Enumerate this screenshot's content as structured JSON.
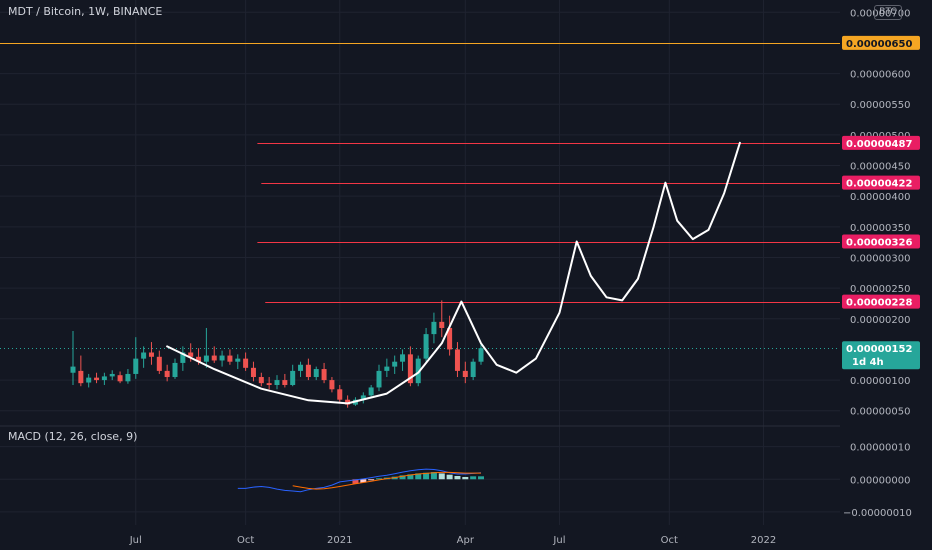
{
  "header": {
    "title": "MDT / Bitcoin, 1W, BINANCE",
    "currency": "BTC"
  },
  "colors": {
    "background": "#131722",
    "grid": "#1f2330",
    "up": "#26a69a",
    "down": "#ef5350",
    "level_line": "#f23645",
    "level_tag": "#e91e63",
    "orange_level": "#f5a623",
    "pattern": "#ffffff",
    "macd_line": "#2962ff",
    "signal_line": "#ff6d00",
    "last_price": "#26a69a"
  },
  "chart_data": {
    "type": "candlestick",
    "price_axis": {
      "ticks": [
        {
          "value": 5e-07,
          "label": "0.00000050"
        },
        {
          "value": 1e-06,
          "label": "0.00000100"
        },
        {
          "value": 2e-06,
          "label": "0.00000200"
        },
        {
          "value": 2.5e-06,
          "label": "0.00000250"
        },
        {
          "value": 3e-06,
          "label": "0.00000300"
        },
        {
          "value": 3.5e-06,
          "label": "0.00000350"
        },
        {
          "value": 4e-06,
          "label": "0.00000400"
        },
        {
          "value": 4.5e-06,
          "label": "0.00000450"
        },
        {
          "value": 5e-06,
          "label": "0.00000500"
        },
        {
          "value": 5.5e-06,
          "label": "0.00000550"
        },
        {
          "value": 6e-06,
          "label": "0.00000600"
        },
        {
          "value": 7e-06,
          "label": "0.00000700"
        }
      ],
      "range": [
        3e-07,
        7.2e-06
      ]
    },
    "time_axis": {
      "labels": [
        "Jul",
        "Oct",
        "2021",
        "Apr",
        "Jul",
        "Oct",
        "2022"
      ],
      "label_weeks": [
        4,
        18,
        30,
        46,
        58,
        72,
        84
      ]
    },
    "last_price": {
      "value": 1.52e-06,
      "label": "0.00000152",
      "countdown": "1d 4h"
    },
    "levels": [
      {
        "value": 6.5e-06,
        "label": "0.00000650",
        "kind": "orange",
        "from_week": -10
      },
      {
        "value": 4.87e-06,
        "label": "0.00000487",
        "kind": "red",
        "from_week": 19.5
      },
      {
        "value": 4.22e-06,
        "label": "0.00000422",
        "kind": "red",
        "from_week": 20
      },
      {
        "value": 3.26e-06,
        "label": "0.00000326",
        "kind": "red",
        "from_week": 19.5
      },
      {
        "value": 2.28e-06,
        "label": "0.00000228",
        "kind": "red",
        "from_week": 20.5
      }
    ],
    "candles": [
      {
        "w": -4,
        "o": 1.12,
        "h": 1.8,
        "l": 0.92,
        "c": 1.22
      },
      {
        "w": -3,
        "o": 1.15,
        "h": 1.4,
        "l": 0.9,
        "c": 0.95
      },
      {
        "w": -2,
        "o": 0.96,
        "h": 1.1,
        "l": 0.88,
        "c": 1.04
      },
      {
        "w": -1,
        "o": 1.04,
        "h": 1.12,
        "l": 0.95,
        "c": 1.0
      },
      {
        "w": 0,
        "o": 1.0,
        "h": 1.12,
        "l": 0.92,
        "c": 1.06
      },
      {
        "w": 1,
        "o": 1.06,
        "h": 1.16,
        "l": 1.0,
        "c": 1.1
      },
      {
        "w": 2,
        "o": 1.08,
        "h": 1.14,
        "l": 0.95,
        "c": 0.98
      },
      {
        "w": 3,
        "o": 0.98,
        "h": 1.18,
        "l": 0.94,
        "c": 1.1
      },
      {
        "w": 4,
        "o": 1.1,
        "h": 1.7,
        "l": 1.02,
        "c": 1.35
      },
      {
        "w": 5,
        "o": 1.35,
        "h": 1.55,
        "l": 1.2,
        "c": 1.45
      },
      {
        "w": 6,
        "o": 1.45,
        "h": 1.62,
        "l": 1.25,
        "c": 1.38
      },
      {
        "w": 7,
        "o": 1.38,
        "h": 1.48,
        "l": 1.1,
        "c": 1.15
      },
      {
        "w": 8,
        "o": 1.15,
        "h": 1.25,
        "l": 0.98,
        "c": 1.05
      },
      {
        "w": 9,
        "o": 1.05,
        "h": 1.35,
        "l": 1.02,
        "c": 1.28
      },
      {
        "w": 10,
        "o": 1.28,
        "h": 1.55,
        "l": 1.15,
        "c": 1.45
      },
      {
        "w": 11,
        "o": 1.45,
        "h": 1.6,
        "l": 1.3,
        "c": 1.38
      },
      {
        "w": 12,
        "o": 1.38,
        "h": 1.52,
        "l": 1.25,
        "c": 1.3
      },
      {
        "w": 13,
        "o": 1.3,
        "h": 1.85,
        "l": 1.2,
        "c": 1.4
      },
      {
        "w": 14,
        "o": 1.4,
        "h": 1.55,
        "l": 1.28,
        "c": 1.32
      },
      {
        "w": 15,
        "o": 1.32,
        "h": 1.48,
        "l": 1.22,
        "c": 1.4
      },
      {
        "w": 16,
        "o": 1.4,
        "h": 1.5,
        "l": 1.25,
        "c": 1.3
      },
      {
        "w": 17,
        "o": 1.3,
        "h": 1.42,
        "l": 1.18,
        "c": 1.35
      },
      {
        "w": 18,
        "o": 1.35,
        "h": 1.45,
        "l": 1.15,
        "c": 1.2
      },
      {
        "w": 19,
        "o": 1.2,
        "h": 1.3,
        "l": 0.98,
        "c": 1.05
      },
      {
        "w": 20,
        "o": 1.05,
        "h": 1.12,
        "l": 0.9,
        "c": 0.95
      },
      {
        "w": 21,
        "o": 0.95,
        "h": 1.05,
        "l": 0.85,
        "c": 0.92
      },
      {
        "w": 22,
        "o": 0.92,
        "h": 1.08,
        "l": 0.85,
        "c": 1.0
      },
      {
        "w": 23,
        "o": 1.0,
        "h": 1.1,
        "l": 0.88,
        "c": 0.92
      },
      {
        "w": 24,
        "o": 0.92,
        "h": 1.25,
        "l": 0.9,
        "c": 1.15
      },
      {
        "w": 25,
        "o": 1.15,
        "h": 1.3,
        "l": 1.05,
        "c": 1.25
      },
      {
        "w": 26,
        "o": 1.25,
        "h": 1.35,
        "l": 1.0,
        "c": 1.05
      },
      {
        "w": 27,
        "o": 1.05,
        "h": 1.22,
        "l": 1.0,
        "c": 1.18
      },
      {
        "w": 28,
        "o": 1.18,
        "h": 1.28,
        "l": 0.95,
        "c": 1.0
      },
      {
        "w": 29,
        "o": 1.0,
        "h": 1.05,
        "l": 0.8,
        "c": 0.85
      },
      {
        "w": 30,
        "o": 0.85,
        "h": 0.92,
        "l": 0.62,
        "c": 0.68
      },
      {
        "w": 31,
        "o": 0.68,
        "h": 0.75,
        "l": 0.55,
        "c": 0.6
      },
      {
        "w": 32,
        "o": 0.6,
        "h": 0.72,
        "l": 0.58,
        "c": 0.68
      },
      {
        "w": 33,
        "o": 0.68,
        "h": 0.8,
        "l": 0.62,
        "c": 0.75
      },
      {
        "w": 34,
        "o": 0.75,
        "h": 0.92,
        "l": 0.7,
        "c": 0.88
      },
      {
        "w": 35,
        "o": 0.88,
        "h": 1.25,
        "l": 0.82,
        "c": 1.15
      },
      {
        "w": 36,
        "o": 1.15,
        "h": 1.35,
        "l": 1.05,
        "c": 1.22
      },
      {
        "w": 37,
        "o": 1.22,
        "h": 1.4,
        "l": 1.1,
        "c": 1.3
      },
      {
        "w": 38,
        "o": 1.3,
        "h": 1.5,
        "l": 1.15,
        "c": 1.42
      },
      {
        "w": 39,
        "o": 1.42,
        "h": 1.55,
        "l": 0.9,
        "c": 0.95
      },
      {
        "w": 40,
        "o": 0.95,
        "h": 1.4,
        "l": 0.9,
        "c": 1.35
      },
      {
        "w": 41,
        "o": 1.35,
        "h": 1.85,
        "l": 1.3,
        "c": 1.75
      },
      {
        "w": 42,
        "o": 1.75,
        "h": 2.1,
        "l": 1.6,
        "c": 1.95
      },
      {
        "w": 43,
        "o": 1.95,
        "h": 2.3,
        "l": 1.7,
        "c": 1.85
      },
      {
        "w": 44,
        "o": 1.85,
        "h": 2.05,
        "l": 1.4,
        "c": 1.5
      },
      {
        "w": 45,
        "o": 1.5,
        "h": 1.62,
        "l": 1.05,
        "c": 1.15
      },
      {
        "w": 46,
        "o": 1.15,
        "h": 1.3,
        "l": 0.95,
        "c": 1.05
      },
      {
        "w": 47,
        "o": 1.05,
        "h": 1.35,
        "l": 1.0,
        "c": 1.3
      },
      {
        "w": 48,
        "o": 1.3,
        "h": 1.62,
        "l": 1.25,
        "c": 1.52
      }
    ],
    "candle_unit": 1e-06,
    "projection": [
      {
        "w": 8,
        "v": 1.55
      },
      {
        "w": 14,
        "v": 1.18
      },
      {
        "w": 20,
        "v": 0.86
      },
      {
        "w": 26,
        "v": 0.67
      },
      {
        "w": 31,
        "v": 0.62
      },
      {
        "w": 36,
        "v": 0.78
      },
      {
        "w": 40,
        "v": 1.12
      },
      {
        "w": 43,
        "v": 1.6
      },
      {
        "w": 45.5,
        "v": 2.28
      },
      {
        "w": 48,
        "v": 1.6
      },
      {
        "w": 50,
        "v": 1.25
      },
      {
        "w": 52.5,
        "v": 1.12
      },
      {
        "w": 55,
        "v": 1.35
      },
      {
        "w": 58,
        "v": 2.1
      },
      {
        "w": 60.2,
        "v": 3.26
      },
      {
        "w": 62,
        "v": 2.7
      },
      {
        "w": 64,
        "v": 2.35
      },
      {
        "w": 66,
        "v": 2.3
      },
      {
        "w": 68,
        "v": 2.65
      },
      {
        "w": 70,
        "v": 3.5
      },
      {
        "w": 71.5,
        "v": 4.22
      },
      {
        "w": 73,
        "v": 3.6
      },
      {
        "w": 75,
        "v": 3.3
      },
      {
        "w": 77,
        "v": 3.45
      },
      {
        "w": 79,
        "v": 4.05
      },
      {
        "w": 81,
        "v": 4.87
      }
    ],
    "macd": {
      "title": "MACD (12, 26, close, 9)",
      "ticks": [
        {
          "value": 1e-07,
          "label": "0.00000010"
        },
        {
          "value": 0.0,
          "label": "0.00000000"
        },
        {
          "value": -1e-07,
          "label": "−0.00000010"
        }
      ],
      "range": [
        -1.4e-07,
        1.6e-07
      ],
      "unit": 1e-07,
      "macd_line": [
        {
          "w": 17,
          "v": -0.28
        },
        {
          "w": 18,
          "v": -0.28
        },
        {
          "w": 19,
          "v": -0.24
        },
        {
          "w": 20,
          "v": -0.22
        },
        {
          "w": 21,
          "v": -0.25
        },
        {
          "w": 22,
          "v": -0.3
        },
        {
          "w": 23,
          "v": -0.34
        },
        {
          "w": 24,
          "v": -0.36
        },
        {
          "w": 25,
          "v": -0.38
        },
        {
          "w": 26,
          "v": -0.32
        },
        {
          "w": 27,
          "v": -0.28
        },
        {
          "w": 28,
          "v": -0.25
        },
        {
          "w": 29,
          "v": -0.18
        },
        {
          "w": 30,
          "v": -0.08
        },
        {
          "w": 31,
          "v": -0.05
        },
        {
          "w": 32,
          "v": -0.02
        },
        {
          "w": 33,
          "v": 0.01
        },
        {
          "w": 34,
          "v": 0.05
        },
        {
          "w": 35,
          "v": 0.09
        },
        {
          "w": 36,
          "v": 0.12
        },
        {
          "w": 37,
          "v": 0.17
        },
        {
          "w": 38,
          "v": 0.22
        },
        {
          "w": 39,
          "v": 0.26
        },
        {
          "w": 40,
          "v": 0.29
        },
        {
          "w": 41,
          "v": 0.31
        },
        {
          "w": 42,
          "v": 0.3
        },
        {
          "w": 43,
          "v": 0.26
        },
        {
          "w": 44,
          "v": 0.2
        },
        {
          "w": 45,
          "v": 0.16
        },
        {
          "w": 46,
          "v": 0.16
        },
        {
          "w": 47,
          "v": 0.18
        },
        {
          "w": 48,
          "v": 0.2
        }
      ],
      "signal_line": [
        {
          "w": 24,
          "v": -0.2
        },
        {
          "w": 25,
          "v": -0.24
        },
        {
          "w": 26,
          "v": -0.28
        },
        {
          "w": 27,
          "v": -0.3
        },
        {
          "w": 28,
          "v": -0.29
        },
        {
          "w": 29,
          "v": -0.26
        },
        {
          "w": 30,
          "v": -0.22
        },
        {
          "w": 31,
          "v": -0.18
        },
        {
          "w": 32,
          "v": -0.14
        },
        {
          "w": 33,
          "v": -0.1
        },
        {
          "w": 34,
          "v": -0.06
        },
        {
          "w": 35,
          "v": -0.02
        },
        {
          "w": 36,
          "v": 0.02
        },
        {
          "w": 37,
          "v": 0.05
        },
        {
          "w": 38,
          "v": 0.09
        },
        {
          "w": 39,
          "v": 0.13
        },
        {
          "w": 40,
          "v": 0.16
        },
        {
          "w": 41,
          "v": 0.18
        },
        {
          "w": 42,
          "v": 0.2
        },
        {
          "w": 43,
          "v": 0.21
        },
        {
          "w": 44,
          "v": 0.21
        },
        {
          "w": 45,
          "v": 0.2
        },
        {
          "w": 46,
          "v": 0.19
        },
        {
          "w": 47,
          "v": 0.19
        },
        {
          "w": 48,
          "v": 0.19
        }
      ],
      "histogram": [
        {
          "w": 32,
          "v": -0.14,
          "fill": "#ef5350"
        },
        {
          "w": 33,
          "v": -0.1,
          "fill": "#ffcdd2"
        },
        {
          "w": 34,
          "v": -0.03,
          "fill": "#ffcdd2"
        },
        {
          "w": 35,
          "v": 0.03,
          "fill": "#26a69a"
        },
        {
          "w": 36,
          "v": 0.05,
          "fill": "#26a69a"
        },
        {
          "w": 37,
          "v": 0.08,
          "fill": "#26a69a"
        },
        {
          "w": 38,
          "v": 0.12,
          "fill": "#26a69a"
        },
        {
          "w": 39,
          "v": 0.15,
          "fill": "#26a69a"
        },
        {
          "w": 40,
          "v": 0.18,
          "fill": "#26a69a"
        },
        {
          "w": 41,
          "v": 0.2,
          "fill": "#26a69a"
        },
        {
          "w": 42,
          "v": 0.22,
          "fill": "#26a69a"
        },
        {
          "w": 43,
          "v": 0.18,
          "fill": "#b2dfdb"
        },
        {
          "w": 44,
          "v": 0.14,
          "fill": "#b2dfdb"
        },
        {
          "w": 45,
          "v": 0.1,
          "fill": "#b2dfdb"
        },
        {
          "w": 46,
          "v": 0.07,
          "fill": "#b2dfdb"
        },
        {
          "w": 47,
          "v": 0.09,
          "fill": "#26a69a"
        },
        {
          "w": 48,
          "v": 0.09,
          "fill": "#26a69a"
        }
      ]
    }
  }
}
